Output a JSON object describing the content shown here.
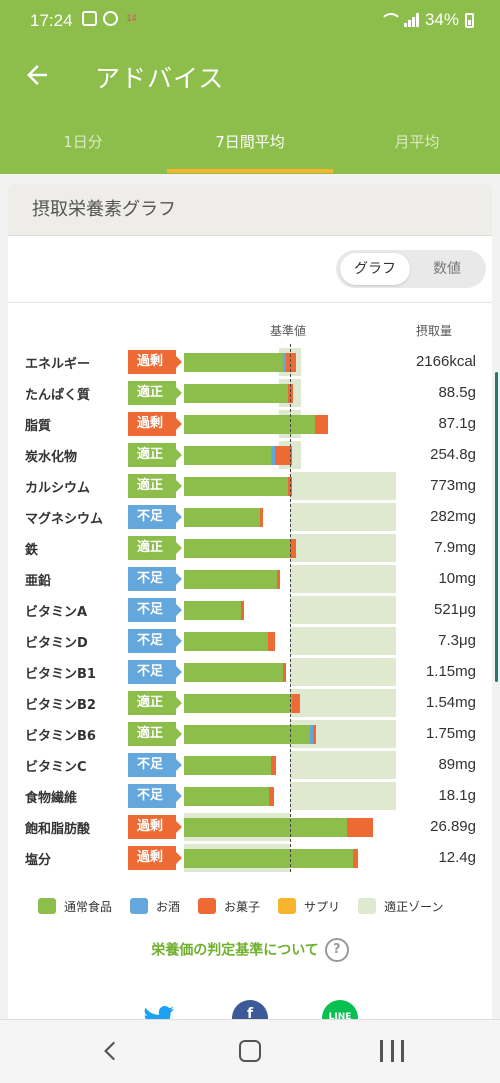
{
  "status": {
    "time": "17:24",
    "battery": "34%",
    "calendar_day": "14"
  },
  "header": {
    "title": "アドバイス"
  },
  "tabs": [
    {
      "label": "1日分",
      "active": false
    },
    {
      "label": "7日間平均",
      "active": true
    },
    {
      "label": "月平均",
      "active": false
    }
  ],
  "card": {
    "title": "摂取栄養素グラフ"
  },
  "toggle": {
    "graph": "グラフ",
    "numbers": "数値",
    "selected": "グラフ"
  },
  "columns": {
    "reference": "基準値",
    "intake": "摂取量"
  },
  "chart_data": {
    "type": "bar",
    "orientation": "horizontal",
    "reference_value": 100,
    "unit": "% of reference",
    "rows": [
      {
        "label": "エネルギー",
        "status": "過剰",
        "status_type": "over",
        "value_text": "2166kcal",
        "normal": 93,
        "alcohol": 3,
        "sweets": 10,
        "zone": [
          90,
          110
        ]
      },
      {
        "label": "たんぱく質",
        "status": "適正",
        "status_type": "ok",
        "value_text": "88.5g",
        "normal": 98,
        "alcohol": 0,
        "sweets": 5,
        "zone": [
          90,
          110
        ]
      },
      {
        "label": "脂質",
        "status": "過剰",
        "status_type": "over",
        "value_text": "87.1g",
        "normal": 124,
        "alcohol": 0,
        "sweets": 12,
        "zone": [
          90,
          110
        ]
      },
      {
        "label": "炭水化物",
        "status": "適正",
        "status_type": "ok",
        "value_text": "254.8g",
        "normal": 82,
        "alcohol": 4,
        "sweets": 16,
        "zone": [
          90,
          110
        ]
      },
      {
        "label": "カルシウム",
        "status": "適正",
        "status_type": "ok",
        "value_text": "773mg",
        "normal": 98,
        "alcohol": 0,
        "sweets": 4,
        "zone": [
          100,
          200
        ]
      },
      {
        "label": "マグネシウム",
        "status": "不足",
        "status_type": "low",
        "value_text": "282mg",
        "normal": 72,
        "alcohol": 0,
        "sweets": 3,
        "zone": [
          100,
          200
        ]
      },
      {
        "label": "鉄",
        "status": "適正",
        "status_type": "ok",
        "value_text": "7.9mg",
        "normal": 100,
        "alcohol": 0,
        "sweets": 6,
        "zone": [
          100,
          200
        ]
      },
      {
        "label": "亜鉛",
        "status": "不足",
        "status_type": "low",
        "value_text": "10mg",
        "normal": 88,
        "alcohol": 0,
        "sweets": 3,
        "zone": [
          100,
          200
        ]
      },
      {
        "label": "ビタミンA",
        "status": "不足",
        "status_type": "low",
        "value_text": "521μg",
        "normal": 54,
        "alcohol": 0,
        "sweets": 3,
        "zone": [
          100,
          200
        ]
      },
      {
        "label": "ビタミンD",
        "status": "不足",
        "status_type": "low",
        "value_text": "7.3μg",
        "normal": 79,
        "alcohol": 0,
        "sweets": 7,
        "zone": [
          100,
          200
        ]
      },
      {
        "label": "ビタミンB1",
        "status": "不足",
        "status_type": "low",
        "value_text": "1.15mg",
        "normal": 93,
        "alcohol": 0,
        "sweets": 3,
        "zone": [
          100,
          200
        ]
      },
      {
        "label": "ビタミンB2",
        "status": "適正",
        "status_type": "ok",
        "value_text": "1.54mg",
        "normal": 102,
        "alcohol": 0,
        "sweets": 7,
        "zone": [
          100,
          200
        ]
      },
      {
        "label": "ビタミンB6",
        "status": "適正",
        "status_type": "ok",
        "value_text": "1.75mg",
        "normal": 119,
        "alcohol": 3,
        "sweets": 3,
        "zone": [
          100,
          200
        ]
      },
      {
        "label": "ビタミンC",
        "status": "不足",
        "status_type": "low",
        "value_text": "89mg",
        "normal": 82,
        "alcohol": 0,
        "sweets": 5,
        "zone": [
          100,
          200
        ]
      },
      {
        "label": "食物繊維",
        "status": "不足",
        "status_type": "low",
        "value_text": "18.1g",
        "normal": 80,
        "alcohol": 0,
        "sweets": 5,
        "zone": [
          100,
          200
        ]
      },
      {
        "label": "飽和脂肪酸",
        "status": "過剰",
        "status_type": "over",
        "value_text": "26.89g",
        "normal": 154,
        "alcohol": 0,
        "sweets": 24,
        "zone": [
          -100,
          100
        ]
      },
      {
        "label": "塩分",
        "status": "過剰",
        "status_type": "over",
        "value_text": "12.4g",
        "normal": 159,
        "alcohol": 0,
        "sweets": 5,
        "zone": [
          -100,
          100
        ]
      }
    ]
  },
  "legend": [
    {
      "label": "通常食品",
      "color": "#8dbd4a"
    },
    {
      "label": "お酒",
      "color": "#64a7dd"
    },
    {
      "label": "お菓子",
      "color": "#ee6a34"
    },
    {
      "label": "サプリ",
      "color": "#f6b52d"
    },
    {
      "label": "適正ゾーン",
      "color": "#dfe9d0"
    }
  ],
  "criteria_link": "栄養価の判定基準について",
  "share": {
    "facebook": "f",
    "line": "LINE"
  }
}
